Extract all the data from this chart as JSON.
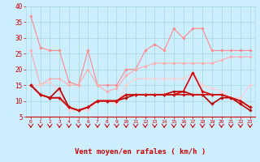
{
  "x": [
    0,
    1,
    2,
    3,
    4,
    5,
    6,
    7,
    8,
    9,
    10,
    11,
    12,
    13,
    14,
    15,
    16,
    17,
    18,
    19,
    20,
    21,
    22,
    23
  ],
  "series": [
    {
      "name": "rafales_peak",
      "color": "#ff8888",
      "linewidth": 0.8,
      "marker": "D",
      "markersize": 1.8,
      "values": [
        37,
        27,
        26,
        26,
        16,
        15,
        26,
        15,
        15,
        15,
        20,
        20,
        26,
        28,
        26,
        33,
        30,
        33,
        33,
        26,
        26,
        26,
        26,
        26
      ]
    },
    {
      "name": "rafales_mid",
      "color": "#ffaaaa",
      "linewidth": 0.8,
      "marker": "D",
      "markersize": 1.8,
      "values": [
        26,
        15,
        17,
        17,
        15,
        15,
        20,
        15,
        13,
        14,
        18,
        20,
        21,
        22,
        22,
        22,
        22,
        22,
        22,
        22,
        23,
        24,
        24,
        24
      ]
    },
    {
      "name": "rafales_low",
      "color": "#ffcccc",
      "linewidth": 0.8,
      "marker": "D",
      "markersize": 1.8,
      "values": [
        15,
        15,
        16,
        13,
        7,
        7,
        7,
        10,
        10,
        9,
        15,
        17,
        17,
        17,
        17,
        17,
        17,
        19,
        15,
        14,
        13,
        11,
        11,
        15
      ]
    },
    {
      "name": "moyen_dark1",
      "color": "#dd0000",
      "linewidth": 1.2,
      "marker": "D",
      "markersize": 1.8,
      "values": [
        15,
        12,
        11,
        11,
        8,
        7,
        8,
        10,
        10,
        10,
        12,
        12,
        12,
        12,
        12,
        12,
        13,
        19,
        13,
        12,
        12,
        11,
        10,
        8
      ]
    },
    {
      "name": "moyen_dark2",
      "color": "#bb0000",
      "linewidth": 1.2,
      "marker": "D",
      "markersize": 1.8,
      "values": [
        15,
        12,
        11,
        14,
        8,
        7,
        8,
        10,
        10,
        10,
        11,
        12,
        12,
        12,
        12,
        13,
        13,
        12,
        12,
        9,
        11,
        11,
        9,
        7
      ]
    },
    {
      "name": "moyen_flat",
      "color": "#cc1111",
      "linewidth": 1.2,
      "marker": "D",
      "markersize": 1.8,
      "values": [
        15,
        12,
        11,
        11,
        8,
        7,
        8,
        10,
        10,
        10,
        12,
        12,
        12,
        12,
        12,
        12,
        12,
        12,
        12,
        12,
        12,
        11,
        10,
        8
      ]
    }
  ],
  "ylim": [
    5,
    40
  ],
  "yticks": [
    5,
    10,
    15,
    20,
    25,
    30,
    35,
    40
  ],
  "xlabel": "Vent moyen/en rafales ( km/h )",
  "background_color": "#cceeff",
  "grid_color": "#aadddd",
  "tick_color": "#cc0000",
  "label_color": "#cc0000",
  "arrow_color": "#cc0000",
  "fig_width": 3.2,
  "fig_height": 2.0,
  "dpi": 100
}
